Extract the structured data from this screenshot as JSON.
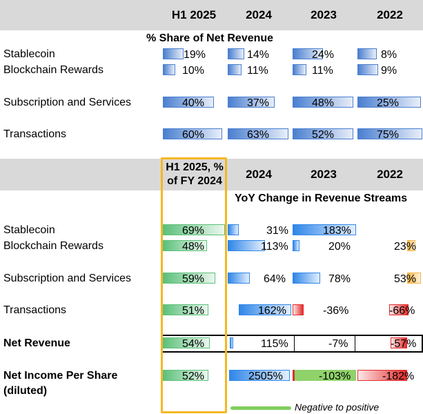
{
  "chart_data": [
    {
      "type": "table",
      "title": "% Share of Net Revenue",
      "columns": [
        "H1 2025",
        "2024",
        "2023",
        "2022"
      ],
      "rows": [
        {
          "label": "Stablecoin",
          "values": [
            19,
            14,
            24,
            8
          ],
          "labels": [
            "19%",
            "14%",
            "24%",
            "8%"
          ]
        },
        {
          "label": "Blockchain Rewards",
          "values": [
            10,
            11,
            11,
            9
          ],
          "labels": [
            "10%",
            "11%",
            "11%",
            "9%"
          ]
        },
        {
          "label": "Subscription and Services",
          "values": [
            40,
            37,
            48,
            25
          ],
          "labels": [
            "40%",
            "37%",
            "48%",
            "25%"
          ]
        },
        {
          "label": "Transactions",
          "values": [
            60,
            63,
            52,
            75
          ],
          "labels": [
            "60%",
            "63%",
            "52%",
            "75%"
          ]
        }
      ]
    },
    {
      "type": "table",
      "title": "YoY Change in Revenue Streams",
      "columns": [
        "H1 2025, % of FY 2024",
        "2024",
        "2023",
        "2022"
      ],
      "rows": [
        {
          "label": "Stablecoin",
          "values": [
            69,
            31,
            183,
            null
          ],
          "labels": [
            "69%",
            "31%",
            "183%",
            ""
          ]
        },
        {
          "label": "Blockchain Rewards",
          "values": [
            48,
            113,
            20,
            23
          ],
          "labels": [
            "48%",
            "113%",
            "20%",
            "23%"
          ]
        },
        {
          "label": "Subscription and Services",
          "values": [
            59,
            64,
            78,
            53
          ],
          "labels": [
            "59%",
            "64%",
            "78%",
            "53%"
          ]
        },
        {
          "label": "Transactions",
          "values": [
            51,
            162,
            -36,
            -66
          ],
          "labels": [
            "51%",
            "162%",
            "-36%",
            "-66%"
          ]
        },
        {
          "label": "Net Revenue",
          "values": [
            54,
            115,
            -7,
            -57
          ],
          "labels": [
            "54%",
            "115%",
            "-7%",
            "-57%"
          ]
        },
        {
          "label": "Net Income Per Share (diluted)",
          "values": [
            52,
            2505,
            -103,
            -182
          ],
          "labels": [
            "52%",
            "2505%",
            "-103%",
            "-182%"
          ]
        }
      ],
      "legend": "Negative to positive"
    }
  ],
  "header1": {
    "cols": [
      "H1 2025",
      "2024",
      "2023",
      "2022"
    ]
  },
  "header2": {
    "col0_line1": "H1 2025, %",
    "col0_line2": "of FY 2024",
    "cols": [
      "2024",
      "2023",
      "2022"
    ]
  },
  "section1_title": "% Share of Net Revenue",
  "section2_title": "YoY Change in Revenue Streams",
  "rows1": [
    "Stablecoin",
    "Blockchain Rewards",
    "Subscription and Services",
    "Transactions"
  ],
  "rows2": [
    "Stablecoin",
    "Blockchain Rewards",
    "Subscription and Services",
    "Transactions",
    "Net Revenue",
    "Net Income Per Share",
    "(diluted)"
  ],
  "legend_text": "Negative to positive",
  "colors": {
    "highlight": "#f5b822",
    "legend_line": "#7fcf5e",
    "header_band": "#d9d9d9"
  }
}
